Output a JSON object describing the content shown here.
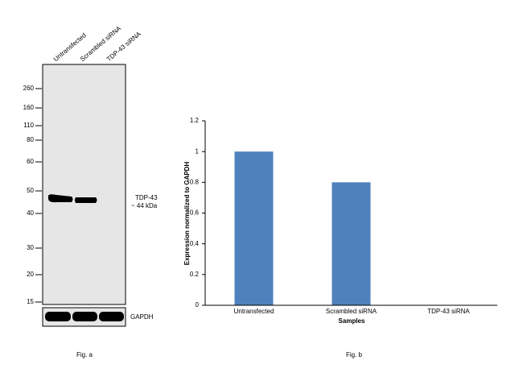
{
  "blot": {
    "lanes": [
      "Untransfected",
      "Scrambled siRNA",
      "TDP-43 siRNA"
    ],
    "markers": [
      "260",
      "160",
      "110",
      "80",
      "60",
      "50",
      "40",
      "30",
      "20",
      "15"
    ],
    "target": "TDP-43",
    "size": "~ 44 kDa",
    "loading_control": "GAPDH",
    "caption": "Fig. a"
  },
  "chart_data": {
    "type": "bar",
    "categories": [
      "Untransfected",
      "Scrambled siRNA",
      "TDP-43 siRNA"
    ],
    "values": [
      1,
      0.8,
      0
    ],
    "color": "#4f81bd",
    "ylim": [
      0,
      1.2
    ],
    "yticks": [
      0,
      0.2,
      0.4,
      0.6,
      0.8,
      1,
      1.2
    ],
    "x_label": "Samples",
    "y_label": "Expression normalized to GAPDH",
    "caption": "Fig. b"
  }
}
